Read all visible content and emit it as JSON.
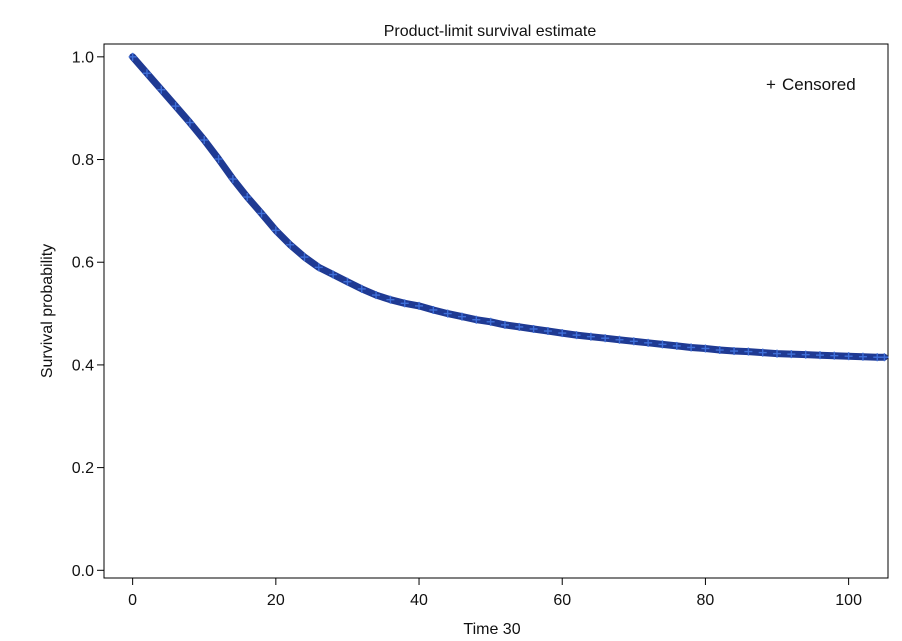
{
  "chart_data": {
    "type": "scatter",
    "title": "Product-limit survival estimate",
    "xlabel": "Time 30",
    "ylabel": "Survival probability",
    "xlim": [
      -4,
      105.5
    ],
    "ylim": [
      -0.015,
      1.025
    ],
    "x_ticks": [
      0,
      20,
      40,
      60,
      80,
      100
    ],
    "x_tick_labels": [
      "0",
      "20",
      "40",
      "60",
      "80",
      "100"
    ],
    "y_ticks": [
      0.0,
      0.2,
      0.4,
      0.6,
      0.8,
      1.0
    ],
    "y_tick_labels": [
      "0.0",
      "0.2",
      "0.4",
      "0.6",
      "0.8",
      "1.0"
    ],
    "grid": false,
    "legend": {
      "position": "top-right",
      "entries": [
        {
          "marker": "+",
          "label": "Censored",
          "color": "#4a68b5"
        }
      ]
    },
    "colors": {
      "curve": "#1f3a93",
      "marker": "#3f6fd8"
    },
    "series": [
      {
        "name": "Censored",
        "marker": "+",
        "x": [
          0,
          2,
          4,
          6,
          8,
          10,
          12,
          14,
          16,
          18,
          20,
          22,
          24,
          26,
          28,
          30,
          32,
          34,
          36,
          38,
          40,
          42,
          44,
          46,
          48,
          50,
          52,
          54,
          56,
          58,
          60,
          62,
          64,
          66,
          68,
          70,
          72,
          74,
          76,
          78,
          80,
          82,
          84,
          86,
          88,
          90,
          92,
          94,
          96,
          98,
          100,
          102,
          104,
          105
        ],
        "y": [
          1.0,
          0.968,
          0.936,
          0.904,
          0.872,
          0.838,
          0.801,
          0.762,
          0.727,
          0.695,
          0.662,
          0.634,
          0.61,
          0.59,
          0.576,
          0.562,
          0.548,
          0.536,
          0.527,
          0.52,
          0.515,
          0.507,
          0.5,
          0.494,
          0.488,
          0.484,
          0.478,
          0.474,
          0.47,
          0.466,
          0.462,
          0.458,
          0.455,
          0.452,
          0.449,
          0.446,
          0.443,
          0.44,
          0.437,
          0.434,
          0.432,
          0.429,
          0.427,
          0.426,
          0.424,
          0.422,
          0.421,
          0.42,
          0.419,
          0.418,
          0.417,
          0.416,
          0.415,
          0.415
        ]
      }
    ]
  }
}
